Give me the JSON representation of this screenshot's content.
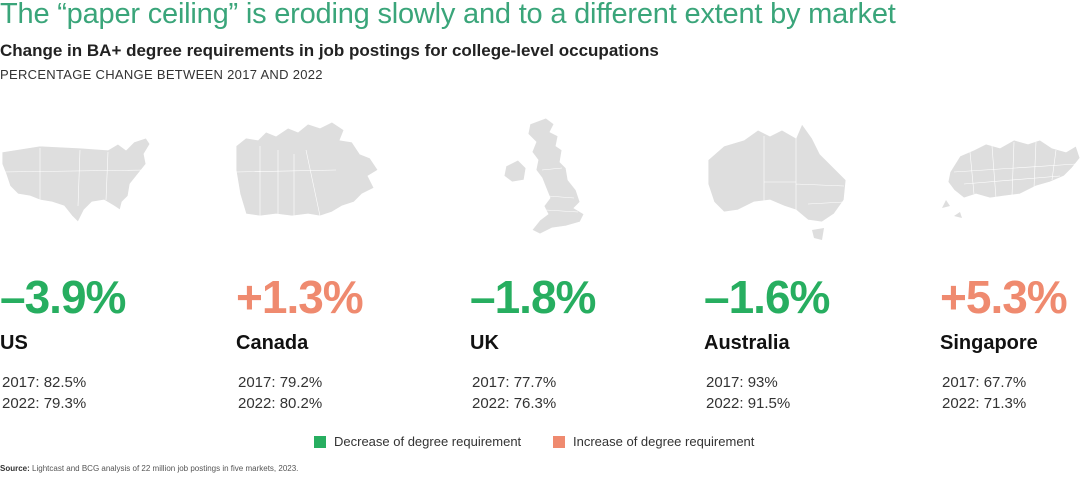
{
  "header": {
    "title": "The “paper ceiling” is eroding slowly and to a different extent by market",
    "subtitle": "Change in BA+ degree requirements in job postings for college-level occupations",
    "caption": "PERCENTAGE CHANGE BETWEEN 2017 AND 2022"
  },
  "colors": {
    "decrease": "#27ae60",
    "increase": "#ef8a6f",
    "map": "#dedede",
    "title": "#3aa57a"
  },
  "chart_data": {
    "type": "table",
    "title": "Change in BA+ degree requirements in job postings for college-level occupations",
    "subtitle": "PERCENTAGE CHANGE BETWEEN 2017 AND 2022",
    "categories": [
      "US",
      "Canada",
      "UK",
      "Australia",
      "Singapore"
    ],
    "change_values": [
      -3.9,
      1.3,
      -1.8,
      -1.6,
      5.3
    ],
    "series": [
      {
        "name": "2017",
        "values": [
          82.5,
          79.2,
          77.7,
          93,
          67.7
        ]
      },
      {
        "name": "2022",
        "values": [
          79.3,
          80.2,
          76.3,
          91.5,
          71.3
        ]
      }
    ],
    "legend": [
      "Decrease of degree requirement",
      "Increase of degree requirement"
    ]
  },
  "markets": [
    {
      "name": "US",
      "change": "–3.9%",
      "direction": "decrease",
      "y2017": "2017: 82.5%",
      "y2022": "2022: 79.3%",
      "map_icon": "us-map-icon"
    },
    {
      "name": "Canada",
      "change": "+1.3%",
      "direction": "increase",
      "y2017": "2017: 79.2%",
      "y2022": "2022: 80.2%",
      "map_icon": "canada-map-icon"
    },
    {
      "name": "UK",
      "change": "–1.8%",
      "direction": "decrease",
      "y2017": "2017: 77.7%",
      "y2022": "2022: 76.3%",
      "map_icon": "uk-map-icon"
    },
    {
      "name": "Australia",
      "change": "–1.6%",
      "direction": "decrease",
      "y2017": "2017: 93%",
      "y2022": "2022: 91.5%",
      "map_icon": "australia-map-icon"
    },
    {
      "name": "Singapore",
      "change": "+5.3%",
      "direction": "increase",
      "y2017": "2017: 67.7%",
      "y2022": "2022: 71.3%",
      "map_icon": "singapore-map-icon"
    }
  ],
  "legend": {
    "decrease_label": "Decrease of degree requirement",
    "increase_label": "Increase of degree requirement"
  },
  "source": {
    "label": "Source:",
    "text": "Lightcast and BCG analysis of 22 million job postings in five markets, 2023."
  }
}
